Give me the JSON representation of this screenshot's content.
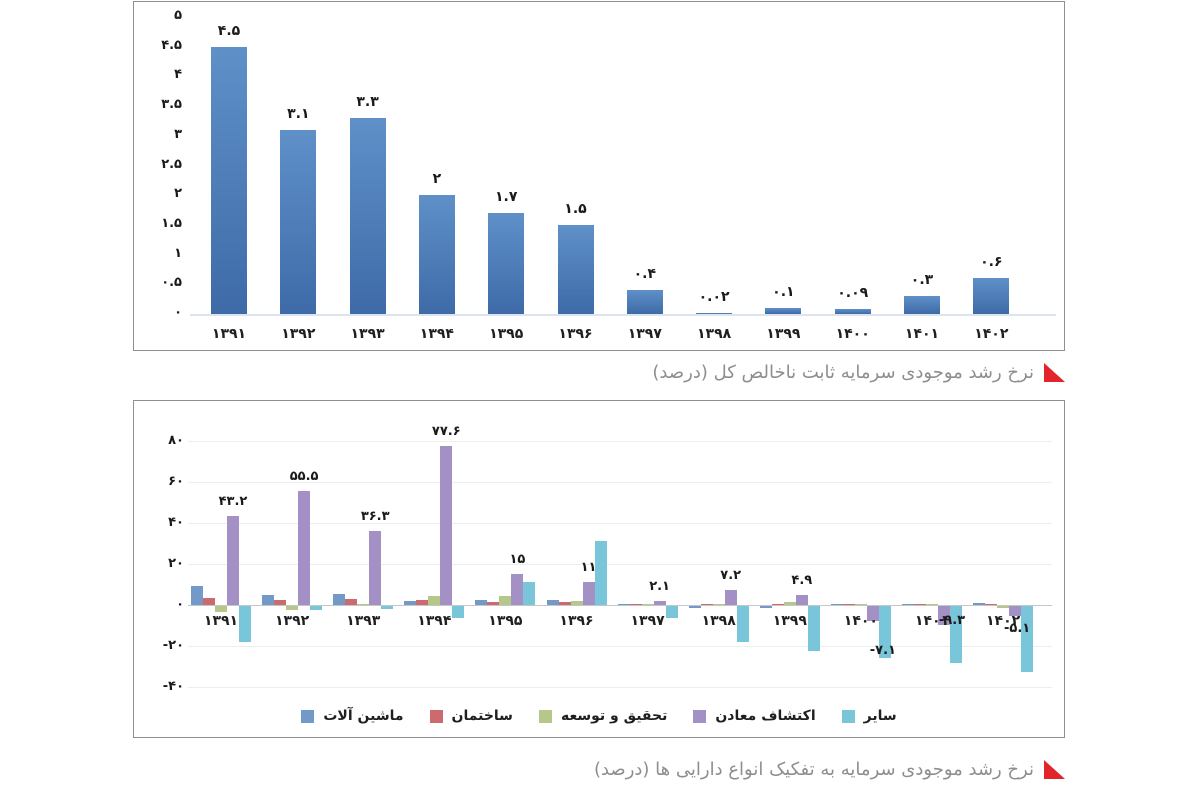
{
  "captions": {
    "flag_color": "#e2252b",
    "text_color": "#8e8e8e"
  },
  "chart_data": [
    {
      "type": "bar",
      "title": "نرخ رشد موجودی سرمایه ثابت ناخالص کل (درصد)",
      "categories": [
        "۱۳۹۱",
        "۱۳۹۲",
        "۱۳۹۳",
        "۱۳۹۴",
        "۱۳۹۵",
        "۱۳۹۶",
        "۱۳۹۷",
        "۱۳۹۸",
        "۱۳۹۹",
        "۱۴۰۰",
        "۱۴۰۱",
        "۱۴۰۲"
      ],
      "categories_latin": [
        "1391",
        "1392",
        "1393",
        "1394",
        "1395",
        "1396",
        "1397",
        "1398",
        "1399",
        "1400",
        "1401",
        "1402"
      ],
      "values": [
        4.5,
        3.1,
        3.3,
        2,
        1.7,
        1.5,
        0.4,
        0.02,
        0.1,
        0.09,
        0.3,
        0.6
      ],
      "value_labels": [
        "۴.۵",
        "۳.۱",
        "۳.۳",
        "۲",
        "۱.۷",
        "۱.۵",
        "۰.۴",
        "۰.۰۲",
        "۰.۱",
        "۰.۰۹",
        "۰.۳",
        "۰.۶"
      ],
      "xlabel": "",
      "ylabel": "",
      "ylim": [
        0,
        5
      ],
      "grid": false,
      "y_ticks": {
        "labels": [
          "۵",
          "۴.۵",
          "۴",
          "۳.۵",
          "۳",
          "۲.۵",
          "۲",
          "۱.۵",
          "۱",
          "۰.۵",
          "۰"
        ],
        "values": [
          5,
          4.5,
          4,
          3.5,
          3,
          2.5,
          2,
          1.5,
          1,
          0.5,
          0
        ]
      },
      "bar_color_top": "#5f90c8",
      "bar_color_bottom": "#3e6ba8"
    },
    {
      "type": "grouped-bar",
      "title": "نرخ رشد موجودی سرمایه به تفکیک انواع دارایی ها (درصد)",
      "categories": [
        "۱۳۹۱",
        "۱۳۹۲",
        "۱۳۹۳",
        "۱۳۹۴",
        "۱۳۹۵",
        "۱۳۹۶",
        "۱۳۹۷",
        "۱۳۹۸",
        "۱۳۹۹",
        "۱۴۰۰",
        "۱۴۰۱",
        "۱۴۰۲"
      ],
      "categories_latin": [
        "1391",
        "1392",
        "1393",
        "1394",
        "1395",
        "1396",
        "1397",
        "1398",
        "1399",
        "1400",
        "1401",
        "1402"
      ],
      "series": [
        {
          "key": "machinery",
          "name": "ماشین آلات",
          "color": "#7299c8",
          "values": [
            9.2,
            4.9,
            5.2,
            2.0,
            2.5,
            2.2,
            0.6,
            -1.2,
            -1.2,
            0.5,
            0.4,
            0.8
          ]
        },
        {
          "key": "building",
          "name": "ساختمان",
          "color": "#cb6b6d",
          "values": [
            3.5,
            2.6,
            2.8,
            2.2,
            1.6,
            1.4,
            0.4,
            0.4,
            0.5,
            0.3,
            0.3,
            0.6
          ]
        },
        {
          "key": "rnd",
          "name": "تحقیق و توسعه",
          "color": "#b5c88a",
          "values": [
            -2.8,
            -2.1,
            0.3,
            4.2,
            4.5,
            1.8,
            0.3,
            0.6,
            1.3,
            0.4,
            0.2,
            -0.8
          ]
        },
        {
          "key": "mining-exploration",
          "name": "اکتشاف معادن",
          "color": "#a390c4",
          "values": [
            43.2,
            55.5,
            36.3,
            77.6,
            15,
            11,
            2.1,
            7.2,
            4.9,
            -7.1,
            -9.3,
            -5.1
          ],
          "value_labels": [
            "۴۳.۲",
            "۵۵.۵",
            "۳۶.۳",
            "۷۷.۶",
            "۱۵",
            "۱۱",
            "۲.۱",
            "۷.۲",
            "۴.۹",
            "-۷.۱",
            "-۹.۳",
            "-۵.۱"
          ]
        },
        {
          "key": "other",
          "name": "سایر",
          "color": "#79c5d9",
          "values": [
            -17.5,
            -2,
            -1.6,
            -5.8,
            11,
            31,
            -6,
            -17.5,
            -22,
            -25.5,
            -28,
            -32
          ]
        }
      ],
      "xlabel": "",
      "ylabel": "",
      "ylim": [
        -40,
        80
      ],
      "grid": true,
      "legend_position": "bottom",
      "y_ticks": {
        "labels": [
          "۸۰",
          "۶۰",
          "۴۰",
          "۲۰",
          "۰",
          "-۲۰",
          "-۴۰"
        ],
        "values": [
          80,
          60,
          40,
          20,
          0,
          -20,
          -40
        ]
      }
    }
  ]
}
